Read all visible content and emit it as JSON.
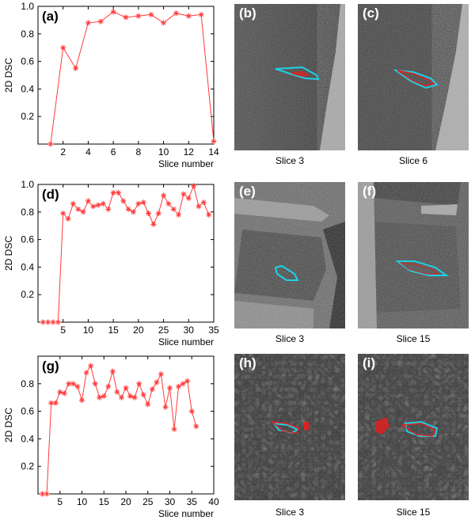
{
  "colors": {
    "series": "#ff3b3b",
    "overlay_cyan": "#1fd0e6",
    "overlay_red": "#e02020",
    "axis": "#000000"
  },
  "chart_data": [
    {
      "type": "line",
      "label": "(a)",
      "ylabel": "2D DSC",
      "xlabel": "Slice number",
      "xlim": [
        0,
        14
      ],
      "ylim": [
        0,
        1.0
      ],
      "xticks": [
        2,
        4,
        6,
        8,
        10,
        12,
        14
      ],
      "yticks": [
        0.2,
        0.4,
        0.6,
        0.8,
        1.0
      ],
      "marker": "asterisk",
      "series": [
        {
          "x": [
            1,
            2,
            3,
            4,
            5,
            6,
            7,
            8,
            9,
            10,
            11,
            12,
            13,
            14
          ],
          "values": [
            0.0,
            0.7,
            0.55,
            0.88,
            0.89,
            0.96,
            0.92,
            0.93,
            0.94,
            0.88,
            0.95,
            0.93,
            0.94,
            0.02
          ]
        }
      ]
    },
    {
      "type": "line",
      "label": "(d)",
      "ylabel": "2D DSC",
      "xlabel": "Slice number",
      "xlim": [
        0,
        35
      ],
      "ylim": [
        0,
        1.0
      ],
      "xticks": [
        5,
        10,
        15,
        20,
        25,
        30,
        35
      ],
      "yticks": [
        0.2,
        0.4,
        0.6,
        0.8,
        1.0
      ],
      "marker": "asterisk",
      "series": [
        {
          "x": [
            1,
            2,
            3,
            4,
            5,
            6,
            7,
            8,
            9,
            10,
            11,
            12,
            13,
            14,
            15,
            16,
            17,
            18,
            19,
            20,
            21,
            22,
            23,
            24,
            25,
            26,
            27,
            28,
            29,
            30,
            31,
            32,
            33,
            34
          ],
          "values": [
            0,
            0,
            0,
            0,
            0.79,
            0.75,
            0.86,
            0.82,
            0.8,
            0.88,
            0.84,
            0.85,
            0.86,
            0.82,
            0.94,
            0.94,
            0.88,
            0.82,
            0.8,
            0.86,
            0.87,
            0.79,
            0.71,
            0.79,
            0.92,
            0.86,
            0.82,
            0.78,
            0.93,
            0.9,
            0.99,
            0.84,
            0.87,
            0.78
          ]
        }
      ]
    },
    {
      "type": "line",
      "label": "(g)",
      "ylabel": "2D DSC",
      "xlabel": "Slice number",
      "xlim": [
        0,
        40
      ],
      "ylim": [
        0,
        1.0
      ],
      "xticks": [
        5,
        10,
        15,
        20,
        25,
        30,
        35,
        40
      ],
      "yticks": [
        0.2,
        0.4,
        0.6,
        0.8
      ],
      "marker": "asterisk",
      "series": [
        {
          "x": [
            1,
            2,
            3,
            4,
            5,
            6,
            7,
            8,
            9,
            10,
            11,
            12,
            13,
            14,
            15,
            16,
            17,
            18,
            19,
            20,
            21,
            22,
            23,
            24,
            25,
            26,
            27,
            28,
            29,
            30,
            31,
            32,
            33,
            34,
            35,
            36
          ],
          "values": [
            0,
            0,
            0.66,
            0.66,
            0.74,
            0.73,
            0.8,
            0.8,
            0.78,
            0.68,
            0.88,
            0.93,
            0.8,
            0.7,
            0.71,
            0.78,
            0.89,
            0.74,
            0.7,
            0.77,
            0.71,
            0.7,
            0.8,
            0.72,
            0.65,
            0.76,
            0.81,
            0.87,
            0.63,
            0.77,
            0.47,
            0.78,
            0.8,
            0.82,
            0.6,
            0.49
          ]
        }
      ]
    }
  ],
  "images": [
    {
      "label": "(b)",
      "caption": "Slice 3"
    },
    {
      "label": "(c)",
      "caption": "Slice 6"
    },
    {
      "label": "(e)",
      "caption": "Slice 3"
    },
    {
      "label": "(f)",
      "caption": "Slice 15"
    },
    {
      "label": "(h)",
      "caption": "Slice 3"
    },
    {
      "label": "(i)",
      "caption": "Slice 15"
    }
  ]
}
